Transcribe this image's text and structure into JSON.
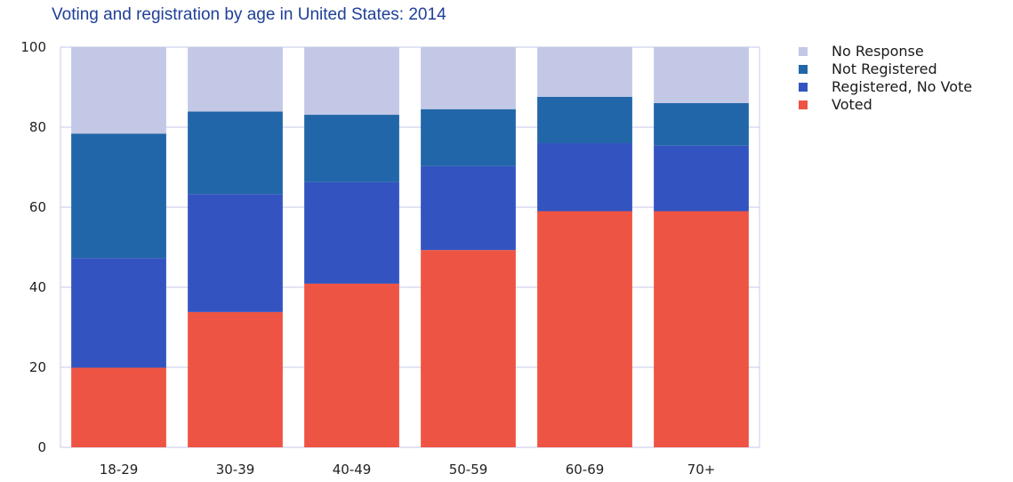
{
  "chart_data": {
    "type": "bar",
    "stacked": true,
    "title": "Voting and registration by age in United States: 2014",
    "xlabel": "",
    "ylabel": "",
    "ylim": [
      0,
      100
    ],
    "yticks": [
      "0",
      "20",
      "40",
      "60",
      "80",
      "100"
    ],
    "grid": true,
    "legend_position": "right",
    "categories": [
      "18-29",
      "30-39",
      "40-49",
      "50-59",
      "60-69",
      "70+"
    ],
    "series": [
      {
        "name": "Voted",
        "color": "#ee5444",
        "values": [
          19.9,
          33.8,
          40.9,
          49.3,
          59.0,
          59.0
        ]
      },
      {
        "name": "Registered, No Vote",
        "color": "#3354c0",
        "values": [
          27.4,
          29.5,
          25.4,
          21.0,
          17.0,
          16.4
        ]
      },
      {
        "name": "Not Registered",
        "color": "#2166a8",
        "values": [
          31.1,
          20.6,
          16.8,
          14.2,
          11.6,
          10.6
        ]
      },
      {
        "name": "No Response",
        "color": "#c2c8e6",
        "values": [
          21.6,
          16.1,
          16.9,
          15.5,
          12.4,
          14.0
        ]
      }
    ],
    "legend": [
      "No Response",
      "Not Registered",
      "Registered, No Vote",
      "Voted"
    ]
  }
}
